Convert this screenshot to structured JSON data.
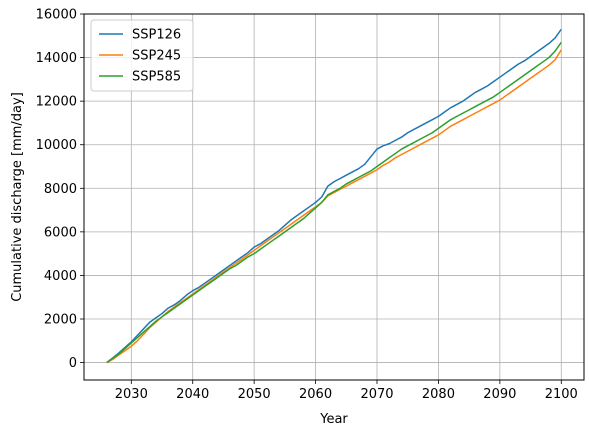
{
  "chart_data": {
    "type": "line",
    "title": "",
    "xlabel": "Year",
    "ylabel": "Cumulative discharge [mm/day]",
    "xlim": [
      2022.3,
      2103.7
    ],
    "ylim": [
      -800,
      16000
    ],
    "xticks": [
      2030,
      2040,
      2050,
      2060,
      2070,
      2080,
      2090,
      2100
    ],
    "yticks": [
      0,
      2000,
      4000,
      6000,
      8000,
      10000,
      12000,
      14000,
      16000
    ],
    "grid": true,
    "legend_position": "top-left",
    "series": [
      {
        "name": "SSP126",
        "color": "#1f77b4",
        "x": [
          2026,
          2027,
          2028,
          2029,
          2030,
          2031,
          2032,
          2033,
          2034,
          2035,
          2036,
          2037,
          2038,
          2039,
          2040,
          2041,
          2042,
          2043,
          2044,
          2045,
          2046,
          2047,
          2048,
          2049,
          2050,
          2051,
          2052,
          2053,
          2054,
          2055,
          2056,
          2057,
          2058,
          2059,
          2060,
          2061,
          2062,
          2063,
          2064,
          2065,
          2066,
          2067,
          2068,
          2069,
          2070,
          2071,
          2072,
          2073,
          2074,
          2075,
          2076,
          2077,
          2078,
          2079,
          2080,
          2081,
          2082,
          2083,
          2084,
          2085,
          2086,
          2087,
          2088,
          2089,
          2090,
          2091,
          2092,
          2093,
          2094,
          2095,
          2096,
          2097,
          2098,
          2099,
          2100
        ],
        "y": [
          0,
          220,
          450,
          700,
          950,
          1250,
          1550,
          1850,
          2050,
          2250,
          2500,
          2650,
          2850,
          3100,
          3300,
          3450,
          3650,
          3850,
          4050,
          4250,
          4450,
          4650,
          4850,
          5050,
          5300,
          5450,
          5650,
          5850,
          6050,
          6300,
          6550,
          6750,
          6950,
          7150,
          7350,
          7600,
          8100,
          8300,
          8450,
          8600,
          8750,
          8900,
          9100,
          9450,
          9800,
          9950,
          10050,
          10200,
          10350,
          10550,
          10700,
          10850,
          11000,
          11150,
          11300,
          11500,
          11700,
          11850,
          12000,
          12200,
          12400,
          12550,
          12700,
          12900,
          13100,
          13300,
          13500,
          13700,
          13850,
          14050,
          14250,
          14450,
          14650,
          14900,
          15300
        ]
      },
      {
        "name": "SSP245",
        "color": "#ff7f0e",
        "x": [
          2026,
          2027,
          2028,
          2029,
          2030,
          2031,
          2032,
          2033,
          2034,
          2035,
          2036,
          2037,
          2038,
          2039,
          2040,
          2041,
          2042,
          2043,
          2044,
          2045,
          2046,
          2047,
          2048,
          2049,
          2050,
          2051,
          2052,
          2053,
          2054,
          2055,
          2056,
          2057,
          2058,
          2059,
          2060,
          2061,
          2062,
          2063,
          2064,
          2065,
          2066,
          2067,
          2068,
          2069,
          2070,
          2071,
          2072,
          2073,
          2074,
          2075,
          2076,
          2077,
          2078,
          2079,
          2080,
          2081,
          2082,
          2083,
          2084,
          2085,
          2086,
          2087,
          2088,
          2089,
          2090,
          2091,
          2092,
          2093,
          2094,
          2095,
          2096,
          2097,
          2098,
          2099,
          2100
        ],
        "y": [
          0,
          150,
          350,
          550,
          750,
          1000,
          1300,
          1600,
          1850,
          2100,
          2350,
          2550,
          2750,
          2950,
          3150,
          3350,
          3550,
          3750,
          3950,
          4150,
          4350,
          4550,
          4750,
          4950,
          5150,
          5350,
          5550,
          5750,
          5950,
          6150,
          6350,
          6550,
          6750,
          6950,
          7150,
          7350,
          7650,
          7800,
          7950,
          8100,
          8250,
          8400,
          8550,
          8700,
          8850,
          9050,
          9200,
          9400,
          9550,
          9700,
          9850,
          10000,
          10150,
          10300,
          10450,
          10650,
          10850,
          11000,
          11150,
          11300,
          11450,
          11600,
          11750,
          11900,
          12050,
          12250,
          12450,
          12650,
          12850,
          13050,
          13250,
          13450,
          13650,
          13900,
          14350
        ]
      },
      {
        "name": "SSP585",
        "color": "#2ca02c",
        "x": [
          2026,
          2027,
          2028,
          2029,
          2030,
          2031,
          2032,
          2033,
          2034,
          2035,
          2036,
          2037,
          2038,
          2039,
          2040,
          2041,
          2042,
          2043,
          2044,
          2045,
          2046,
          2047,
          2048,
          2049,
          2050,
          2051,
          2052,
          2053,
          2054,
          2055,
          2056,
          2057,
          2058,
          2059,
          2060,
          2061,
          2062,
          2063,
          2064,
          2065,
          2066,
          2067,
          2068,
          2069,
          2070,
          2071,
          2072,
          2073,
          2074,
          2075,
          2076,
          2077,
          2078,
          2079,
          2080,
          2081,
          2082,
          2083,
          2084,
          2085,
          2086,
          2087,
          2088,
          2089,
          2090,
          2091,
          2092,
          2093,
          2094,
          2095,
          2096,
          2097,
          2098,
          2099,
          2100
        ],
        "y": [
          0,
          200,
          400,
          650,
          900,
          1150,
          1400,
          1650,
          1900,
          2100,
          2300,
          2500,
          2700,
          2900,
          3100,
          3300,
          3500,
          3700,
          3900,
          4100,
          4300,
          4450,
          4650,
          4850,
          5000,
          5200,
          5400,
          5600,
          5800,
          6000,
          6200,
          6400,
          6600,
          6850,
          7100,
          7350,
          7700,
          7850,
          8000,
          8200,
          8350,
          8500,
          8650,
          8800,
          9000,
          9200,
          9400,
          9600,
          9800,
          9950,
          10100,
          10250,
          10400,
          10550,
          10750,
          10950,
          11150,
          11300,
          11450,
          11600,
          11750,
          11900,
          12050,
          12200,
          12400,
          12600,
          12800,
          13000,
          13200,
          13400,
          13600,
          13800,
          14000,
          14300,
          14700
        ]
      }
    ]
  }
}
